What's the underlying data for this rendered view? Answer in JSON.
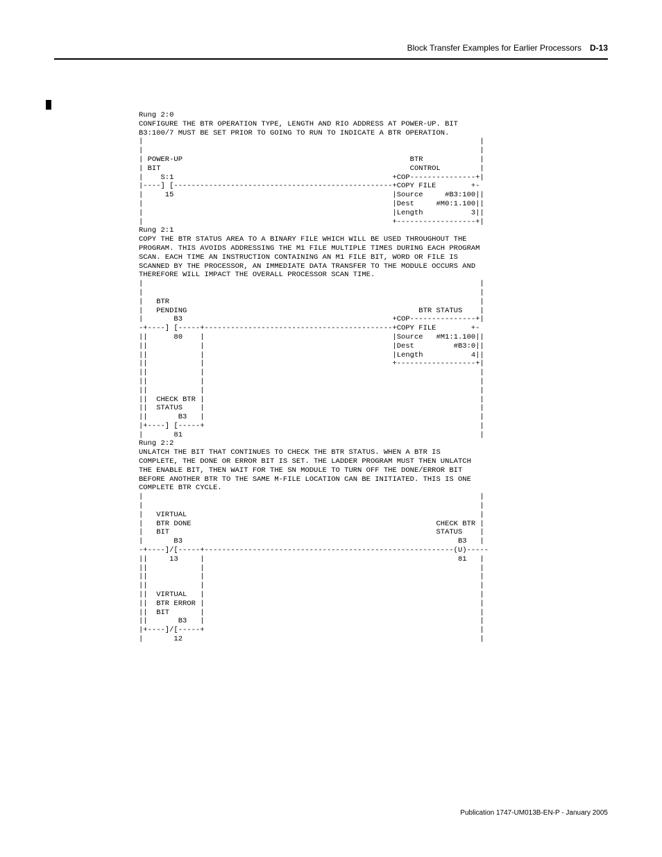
{
  "header": {
    "title": "Block Transfer Examples for Earlier Processors",
    "page_number": "D-13"
  },
  "footer": {
    "text": "Publication 1747-UM013B-EN-P - January 2005"
  },
  "code": {
    "rung20_label": "Rung 2:0",
    "rung20_desc1": "CONFIGURE THE BTR OPERATION TYPE, LENGTH AND RIO ADDRESS AT POWER-UP. BIT",
    "rung20_desc2": "B3:100/7 MUST BE SET PRIOR TO GOING TO RUN TO INDICATE A BTR OPERATION.",
    "rung20_ladder": "|                                                                             |\n|                                                                             |\n| POWER-UP                                                    BTR             |\n| BIT                                                         CONTROL         |\n|    S:1                                                  +COP---------------+|\n|----] [--------------------------------------------------+COPY FILE        +-\n|     15                                                  |Source     #B3:100||\n|                                                         |Dest     #M0:1.100||\n|                                                         |Length           3||\n|                                                         +------------------+|",
    "rung21_label": "Rung 2:1",
    "rung21_desc1": "COPY THE BTR STATUS AREA TO A BINARY FILE WHICH WILL BE USED THROUGHOUT THE",
    "rung21_desc2": "PROGRAM. THIS AVOIDS ADDRESSING THE M1 FILE MULTIPLE TIMES DURING EACH PROGRAM",
    "rung21_desc3": "SCAN. EACH TIME AN INSTRUCTION CONTAINING AN M1 FILE BIT, WORD OR FILE IS",
    "rung21_desc4": "SCANNED BY THE PROCESSOR, AN IMMEDIATE DATA TRANSFER TO THE MODULE OCCURS AND",
    "rung21_desc5": "THEREFORE WILL IMPACT THE OVERALL PROCESSOR SCAN TIME.",
    "rung21_ladder": "|                                                                             |\n|                                                                             |\n|   BTR                                                                       |\n|   PENDING                                                     BTR STATUS    |\n|       B3                                                +COP---------------+|\n-+----] [-----+-------------------------------------------+COPY FILE        +-\n||      80    |                                           |Source   #M1:1.100||\n||            |                                           |Dest         #B3:0||\n||            |                                           |Length           4||\n||            |                                           +------------------+|\n||            |                                                               |\n||            |                                                               |\n||            |                                                               |\n||  CHECK BTR |                                                               |\n||  STATUS    |                                                               |\n||       B3   |                                                               |\n|+----] [-----+                                                               |\n|       81                                                                    |",
    "rung22_label": "Rung 2:2",
    "rung22_desc1": "UNLATCH THE BIT THAT CONTINUES TO CHECK THE BTR STATUS. WHEN A BTR IS",
    "rung22_desc2": "COMPLETE, THE DONE OR ERROR BIT IS SET. THE LADDER PROGRAM MUST THEN UNLATCH",
    "rung22_desc3": "THE ENABLE BIT, THEN WAIT FOR THE SN MODULE TO TURN OFF THE DONE/ERROR BIT",
    "rung22_desc4": "BEFORE ANOTHER BTR TO THE SAME M-FILE LOCATION CAN BE INITIATED. THIS IS ONE",
    "rung22_desc5": "COMPLETE BTR CYCLE.",
    "rung22_ladder": "|                                                                             |\n|                                                                             |\n|   VIRTUAL                                                                   |\n|   BTR DONE                                                        CHECK BTR |\n|   BIT                                                             STATUS    |\n|       B3                                                               B3   |\n-+----]/[-----+---------------------------------------------------------(U)-----\n||     13     |                                                          81   |\n||            |                                                               |\n||            |                                                               |\n||            |                                                               |\n||  VIRTUAL   |                                                               |\n||  BTR ERROR |                                                               |\n||  BIT       |                                                               |\n||       B3   |                                                               |\n|+----]/[-----+                                                               |\n|       12                                                                    |"
  }
}
